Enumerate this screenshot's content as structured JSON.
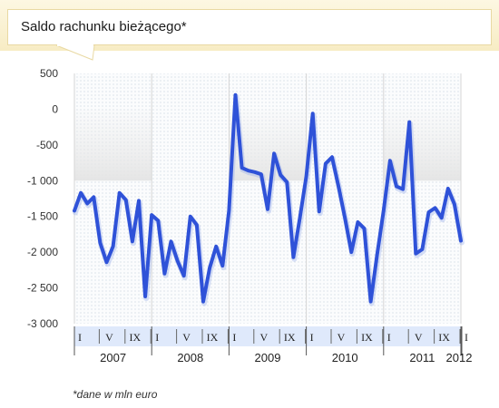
{
  "header": {
    "title": "Saldo rachunku bieżącego*"
  },
  "footnote": "*dane w mln euro",
  "chart_data": {
    "type": "line",
    "title": "Saldo rachunku bieżącego*",
    "ylim": [
      -3000,
      500
    ],
    "yticks": [
      500,
      0,
      -500,
      -1000,
      -1500,
      -2000,
      -2500,
      -3000
    ],
    "ytick_labels": [
      "500",
      "0",
      "-500",
      "-1 000",
      "-1 500",
      "-2 000",
      "-2 500",
      "-3 000"
    ],
    "month_tick_labels": [
      "I",
      "V",
      "IX"
    ],
    "years": [
      "2007",
      "2008",
      "2009",
      "2010",
      "2011",
      "2012"
    ],
    "x_start": "2007-01",
    "frequency": "monthly",
    "series": [
      {
        "color": "#2f52d8",
        "values": [
          -1420,
          -1170,
          -1320,
          -1230,
          -1870,
          -2140,
          -1920,
          -1170,
          -1270,
          -1850,
          -1280,
          -2620,
          -1480,
          -1560,
          -2300,
          -1850,
          -2120,
          -2330,
          -1500,
          -1620,
          -2690,
          -2220,
          -1920,
          -2190,
          -1420,
          200,
          -820,
          -860,
          -880,
          -910,
          -1400,
          -620,
          -920,
          -1020,
          -2070,
          -1520,
          -940,
          -60,
          -1430,
          -760,
          -670,
          -1080,
          -1520,
          -2000,
          -1580,
          -1670,
          -2690,
          -2030,
          -1420,
          -720,
          -1080,
          -1120,
          -180,
          -2020,
          -1960,
          -1440,
          -1380,
          -1520,
          -1110,
          -1330,
          -1840
        ]
      }
    ],
    "grid": false,
    "legend": "none"
  }
}
